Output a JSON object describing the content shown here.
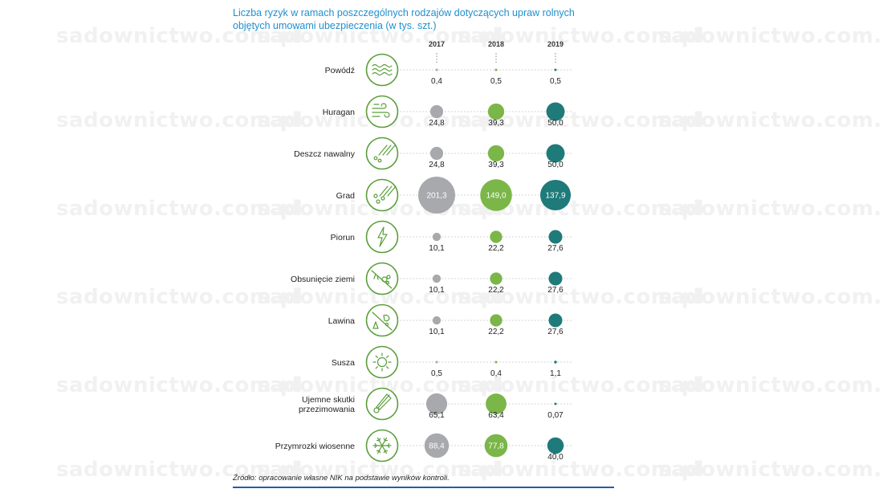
{
  "watermark_text": "sadownictwo.com.pl",
  "title": "Liczba ryzyk w ramach poszczególnych rodzajów dotyczących upraw rolnych objętych umowami ubezpieczenia (w tys. szt.)",
  "source": "Źródło: opracowanie własne NIK na podstawie wyników kontroli.",
  "colors": {
    "y2017": "#a7a9ac",
    "y2018": "#7ab648",
    "y2019": "#1f7a7a",
    "icon": "#5a9e3a",
    "title": "#1f8fcf",
    "rule": "#1f5fa8"
  },
  "chart_data": {
    "type": "bubble-table",
    "years": [
      "2017",
      "2018",
      "2019"
    ],
    "rows": [
      {
        "label": "Powódź",
        "icon": "water-waves-icon",
        "values": [
          0.4,
          0.5,
          0.5
        ],
        "display": [
          "0,4",
          "0,5",
          "0,5"
        ]
      },
      {
        "label": "Huragan",
        "icon": "wind-icon",
        "values": [
          24.8,
          39.3,
          50.0
        ],
        "display": [
          "24,8",
          "39,3",
          "50,0"
        ]
      },
      {
        "label": "Deszcz nawalny",
        "icon": "heavy-rain-icon",
        "values": [
          24.8,
          39.3,
          50.0
        ],
        "display": [
          "24,8",
          "39,3",
          "50,0"
        ]
      },
      {
        "label": "Grad",
        "icon": "hail-icon",
        "values": [
          201.3,
          149.0,
          137.9
        ],
        "display": [
          "201,3",
          "149,0",
          "137,9"
        ]
      },
      {
        "label": "Piorun",
        "icon": "lightning-icon",
        "values": [
          10.1,
          22.2,
          27.6
        ],
        "display": [
          "10,1",
          "22,2",
          "27,6"
        ]
      },
      {
        "label": "Obsunięcie ziemi",
        "icon": "landslide-icon",
        "values": [
          10.1,
          22.2,
          27.6
        ],
        "display": [
          "10,1",
          "22,2",
          "27,6"
        ]
      },
      {
        "label": "Lawina",
        "icon": "avalanche-icon",
        "values": [
          10.1,
          22.2,
          27.6
        ],
        "display": [
          "10,1",
          "22,2",
          "27,6"
        ]
      },
      {
        "label": "Susza",
        "icon": "sun-icon",
        "values": [
          0.5,
          0.4,
          1.1
        ],
        "display": [
          "0,5",
          "0,4",
          "1,1"
        ]
      },
      {
        "label": "Ujemne skutki przezimowania",
        "label_lines": [
          "Ujemne skutki",
          "przezimowania"
        ],
        "icon": "thermometer-icon",
        "values": [
          65.1,
          63.4,
          0.07
        ],
        "display": [
          "65,1",
          "63,4",
          "0,07"
        ]
      },
      {
        "label": "Przymrozki wiosenne",
        "icon": "snowflake-icon",
        "values": [
          88.4,
          77.8,
          40.0
        ],
        "display": [
          "88,4",
          "77,8",
          "40,0"
        ]
      }
    ]
  }
}
